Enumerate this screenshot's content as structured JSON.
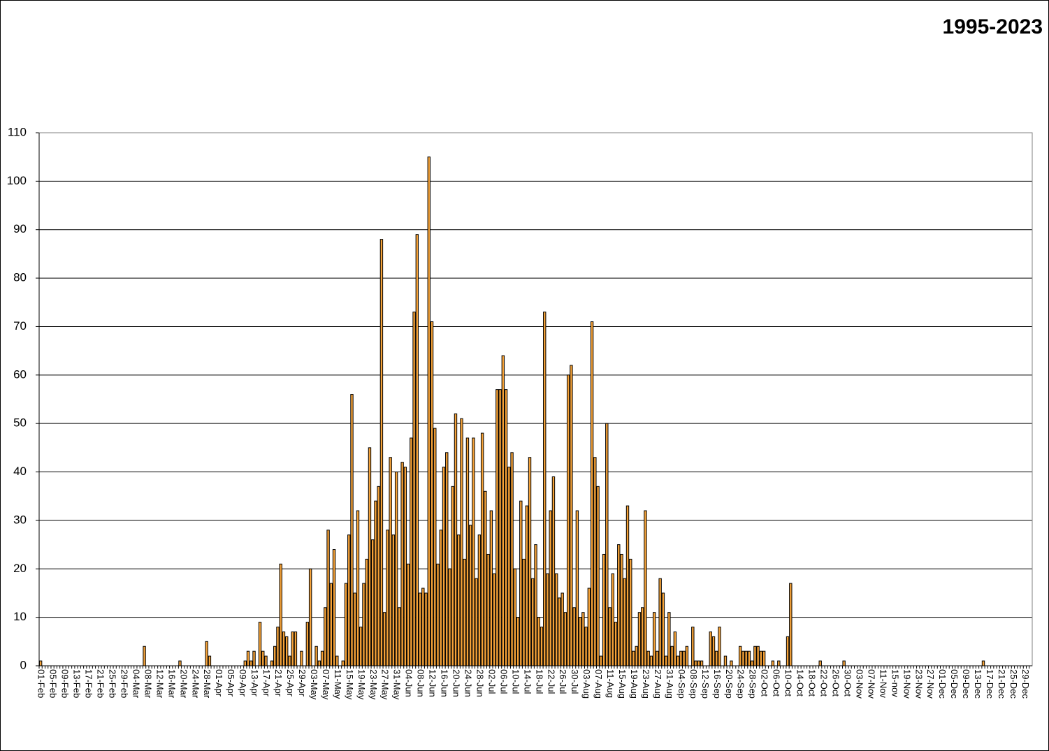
{
  "chart_data": {
    "type": "bar",
    "title": "1995-2023",
    "color": "#f5a238",
    "grid": true,
    "ylim": [
      0,
      110
    ],
    "yticks": [
      0,
      10,
      20,
      30,
      40,
      50,
      60,
      70,
      80,
      90,
      100,
      110
    ],
    "categories": [
      "01-Feb",
      null,
      null,
      null,
      "05-Feb",
      null,
      null,
      null,
      "09-Feb",
      null,
      null,
      null,
      "13-Feb",
      null,
      null,
      null,
      "17-Feb",
      null,
      null,
      null,
      "21-Feb",
      null,
      null,
      null,
      "25-Feb",
      null,
      null,
      null,
      "29-Feb",
      null,
      null,
      null,
      "04-Mar",
      null,
      null,
      null,
      "08-Mar",
      null,
      null,
      null,
      "12-Mar",
      null,
      null,
      null,
      "16-Mar",
      null,
      null,
      null,
      "20-Mar",
      null,
      null,
      null,
      "24-Mar",
      null,
      null,
      null,
      "28-Mar",
      null,
      null,
      null,
      "01-Apr",
      null,
      null,
      null,
      "05-Apr",
      null,
      null,
      null,
      "09-Apr",
      null,
      null,
      null,
      "13-Apr",
      null,
      null,
      null,
      "17-Apr",
      null,
      null,
      null,
      "21-Apr",
      null,
      null,
      null,
      "25-Apr",
      null,
      null,
      null,
      "29-Apr",
      null,
      null,
      null,
      "03-May",
      null,
      null,
      null,
      "07-May",
      null,
      null,
      null,
      "11-May",
      null,
      null,
      null,
      "15-May",
      null,
      null,
      null,
      "19-May",
      null,
      null,
      null,
      "23-May",
      null,
      null,
      null,
      "27-May",
      null,
      null,
      null,
      "31-May",
      null,
      null,
      null,
      "04-Jun",
      null,
      null,
      null,
      "08-Jun",
      null,
      null,
      null,
      "12-Jun",
      null,
      null,
      null,
      "16-Jun",
      null,
      null,
      null,
      "20-Jun",
      null,
      null,
      null,
      "24-Jun",
      null,
      null,
      null,
      "28-Jun",
      null,
      null,
      null,
      "02-Jul",
      null,
      null,
      null,
      "06-Jul",
      null,
      null,
      null,
      "10-Jul",
      null,
      null,
      null,
      "14-Jul",
      null,
      null,
      null,
      "18-Jul",
      null,
      null,
      null,
      "22-Jul",
      null,
      null,
      null,
      "26-Jul",
      null,
      null,
      null,
      "30-Jul",
      null,
      null,
      null,
      "03-Aug",
      null,
      null,
      null,
      "07-Aug",
      null,
      null,
      null,
      "11-Aug",
      null,
      null,
      null,
      "15-Aug",
      null,
      null,
      null,
      "19-Aug",
      null,
      null,
      null,
      "23-Aug",
      null,
      null,
      null,
      "27-Aug",
      null,
      null,
      null,
      "31-Aug",
      null,
      null,
      null,
      "04-Sep",
      null,
      null,
      null,
      "08-Sep",
      null,
      null,
      null,
      "12-Sep",
      null,
      null,
      null,
      "16-Sep",
      null,
      null,
      null,
      "20-Sep",
      null,
      null,
      null,
      "24-Sep",
      null,
      null,
      null,
      "28-Sep",
      null,
      null,
      null,
      "02-Oct",
      null,
      null,
      null,
      "06-Oct",
      null,
      null,
      null,
      "10-Oct",
      null,
      null,
      null,
      "14-Oct",
      null,
      null,
      null,
      "18-Oct",
      null,
      null,
      null,
      "22-Oct",
      null,
      null,
      null,
      "26-Oct",
      null,
      null,
      null,
      "30-Oct",
      null,
      null,
      null,
      "03-Nov",
      null,
      null,
      null,
      "07-Nov",
      null,
      null,
      null,
      "11-Nov",
      null,
      null,
      null,
      "15-nov",
      null,
      null,
      null,
      "19-Nov",
      null,
      null,
      null,
      "23-Nov",
      null,
      null,
      null,
      "27-Nov",
      null,
      null,
      null,
      "01-Dec",
      null,
      null,
      null,
      "05-Dec",
      null,
      null,
      null,
      "09-Dec",
      null,
      null,
      null,
      "13-Dec",
      null,
      null,
      null,
      "17-Dec",
      null,
      null,
      null,
      "21-Dec",
      null,
      null,
      null,
      "25-Dec",
      null,
      null,
      null,
      "29-Dec",
      null,
      null
    ],
    "values": [
      1,
      0,
      0,
      0,
      0,
      0,
      0,
      0,
      0,
      0,
      0,
      0,
      0,
      0,
      0,
      0,
      0,
      0,
      0,
      0,
      0,
      0,
      0,
      0,
      0,
      0,
      0,
      0,
      0,
      0,
      0,
      0,
      0,
      0,
      0,
      4,
      0,
      0,
      0,
      0,
      0,
      0,
      0,
      0,
      0,
      0,
      0,
      1,
      0,
      0,
      0,
      0,
      0,
      0,
      0,
      0,
      5,
      2,
      0,
      0,
      0,
      0,
      0,
      0,
      0,
      0,
      0,
      0,
      0,
      1,
      3,
      1,
      3,
      0,
      9,
      3,
      2,
      0,
      1,
      4,
      8,
      21,
      7,
      6,
      2,
      7,
      7,
      0,
      3,
      0,
      9,
      20,
      0,
      4,
      1,
      3,
      12,
      28,
      17,
      24,
      2,
      0,
      1,
      17,
      27,
      56,
      15,
      32,
      8,
      17,
      22,
      45,
      26,
      34,
      37,
      88,
      11,
      28,
      43,
      27,
      40,
      12,
      42,
      41,
      21,
      47,
      73,
      89,
      15,
      16,
      15,
      105,
      71,
      49,
      21,
      28,
      41,
      44,
      20,
      37,
      52,
      27,
      51,
      22,
      47,
      29,
      47,
      18,
      27,
      48,
      36,
      23,
      32,
      19,
      57,
      57,
      64,
      57,
      41,
      44,
      20,
      10,
      34,
      22,
      33,
      43,
      18,
      25,
      10,
      8,
      73,
      19,
      32,
      39,
      19,
      14,
      15,
      11,
      60,
      62,
      12,
      32,
      10,
      11,
      8,
      16,
      71,
      43,
      37,
      2,
      23,
      50,
      12,
      19,
      9,
      25,
      23,
      18,
      33,
      22,
      3,
      4,
      11,
      12,
      32,
      3,
      2,
      11,
      3,
      18,
      15,
      2,
      11,
      4,
      7,
      2,
      3,
      3,
      4,
      0,
      8,
      1,
      1,
      1,
      0,
      0,
      7,
      6,
      3,
      8,
      0,
      2,
      0,
      1,
      0,
      0,
      4,
      3,
      3,
      3,
      1,
      4,
      4,
      3,
      3,
      0,
      0,
      1,
      0,
      1,
      0,
      0,
      6,
      17,
      0,
      0,
      0,
      0,
      0,
      0,
      0,
      0,
      0,
      1,
      0,
      0,
      0,
      0,
      0,
      0,
      0,
      1,
      0,
      0,
      0,
      0,
      0,
      0,
      0,
      0,
      0,
      0,
      0,
      0,
      0,
      0,
      0,
      0,
      0,
      0,
      0,
      0,
      0,
      0,
      0,
      0,
      0,
      0,
      0,
      0,
      0,
      0,
      0,
      0,
      0,
      0,
      0,
      0,
      0,
      0,
      0,
      0,
      0,
      0,
      0,
      0,
      0,
      0,
      1,
      0,
      0,
      0,
      0,
      0,
      0,
      0,
      0,
      0,
      0,
      0,
      0,
      0,
      0,
      0,
      0
    ]
  }
}
